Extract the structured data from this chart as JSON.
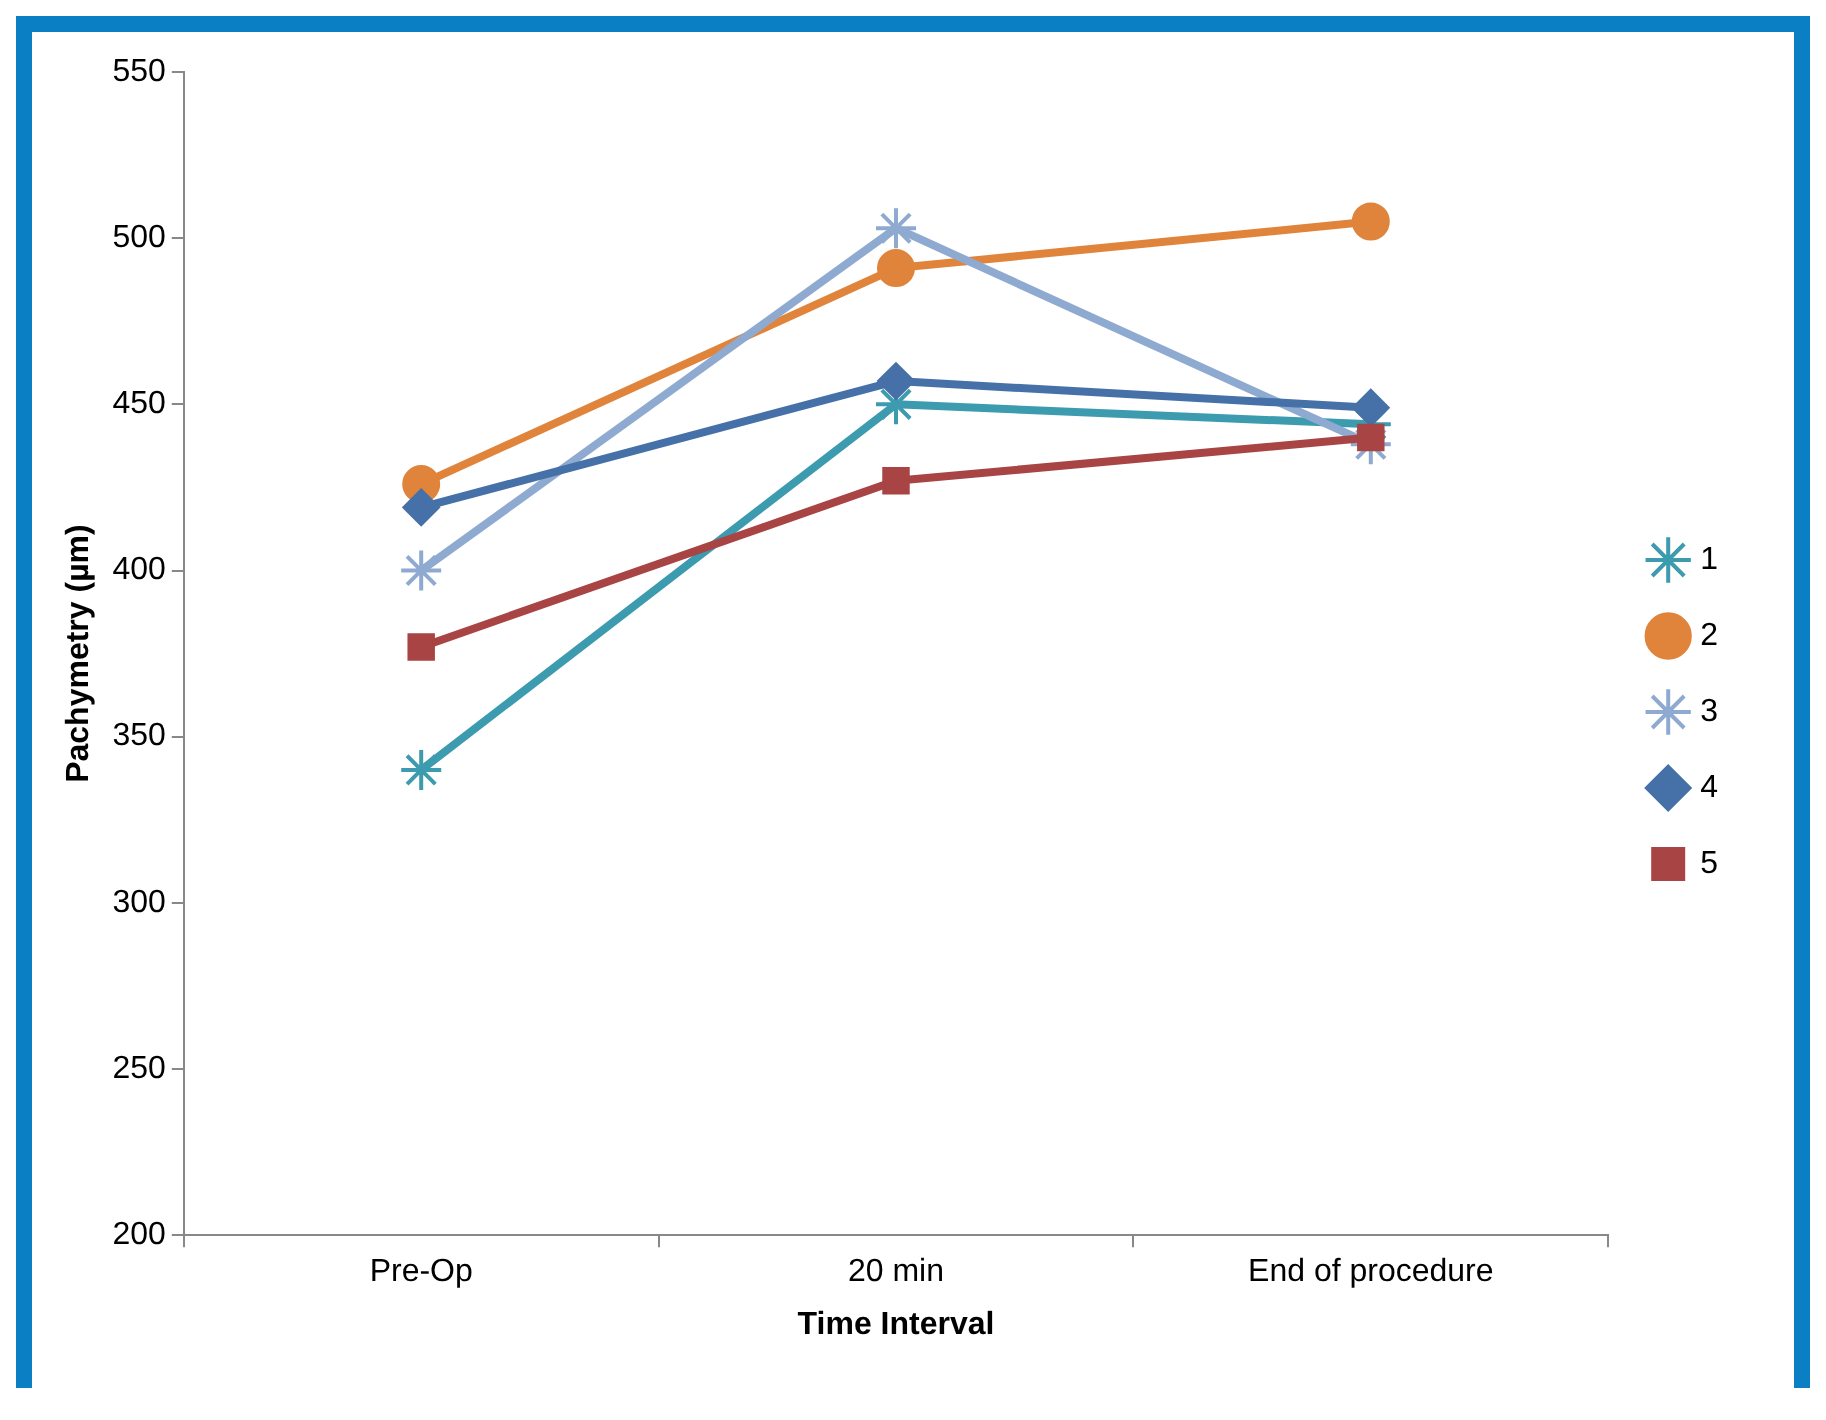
{
  "chart_data": {
    "type": "line",
    "xlabel": "Time Interval",
    "ylabel": "Pachymetry (µm)",
    "categories": [
      "Pre-Op",
      "20 min",
      "End of procedure"
    ],
    "ylim": [
      200,
      550
    ],
    "yticks": [
      200,
      250,
      300,
      350,
      400,
      450,
      500,
      550
    ],
    "legend": "right",
    "series": [
      {
        "name": "1",
        "color": "#3d9bb0",
        "marker": "cross",
        "values": [
          340,
          450,
          444
        ]
      },
      {
        "name": "2",
        "color": "#e0843c",
        "marker": "circle",
        "values": [
          426,
          491,
          505
        ]
      },
      {
        "name": "3",
        "color": "#8faad0",
        "marker": "cross",
        "values": [
          400,
          503,
          438
        ]
      },
      {
        "name": "4",
        "color": "#4571a8",
        "marker": "diamond",
        "values": [
          419,
          457,
          449
        ]
      },
      {
        "name": "5",
        "color": "#a84443",
        "marker": "square",
        "values": [
          377,
          427,
          440
        ]
      }
    ]
  }
}
